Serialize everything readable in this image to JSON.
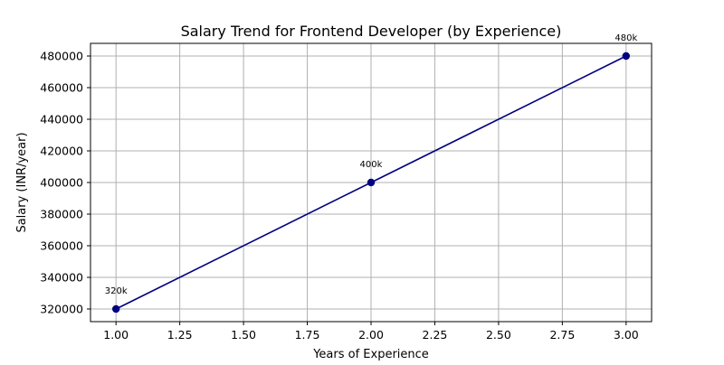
{
  "chart_data": {
    "type": "line",
    "title": "Salary Trend for Frontend Developer (by Experience)",
    "xlabel": "Years of Experience",
    "ylabel": "Salary (INR/year)",
    "xlim": [
      0.9,
      3.1
    ],
    "ylim": [
      312000,
      488000
    ],
    "xticks": [
      1.0,
      1.25,
      1.5,
      1.75,
      2.0,
      2.25,
      2.5,
      2.75,
      3.0
    ],
    "xtick_labels": [
      "1.00",
      "1.25",
      "1.50",
      "1.75",
      "2.00",
      "2.25",
      "2.50",
      "2.75",
      "3.00"
    ],
    "yticks": [
      320000,
      340000,
      360000,
      380000,
      400000,
      420000,
      440000,
      460000,
      480000
    ],
    "ytick_labels": [
      "320000",
      "340000",
      "360000",
      "380000",
      "400000",
      "420000",
      "440000",
      "460000",
      "480000"
    ],
    "grid": true,
    "series": [
      {
        "color": "#000080",
        "marker": "circle",
        "x": [
          1,
          2,
          3
        ],
        "y": [
          320000,
          400000,
          480000
        ],
        "labels": [
          "320k",
          "400k",
          "480k"
        ]
      }
    ]
  }
}
